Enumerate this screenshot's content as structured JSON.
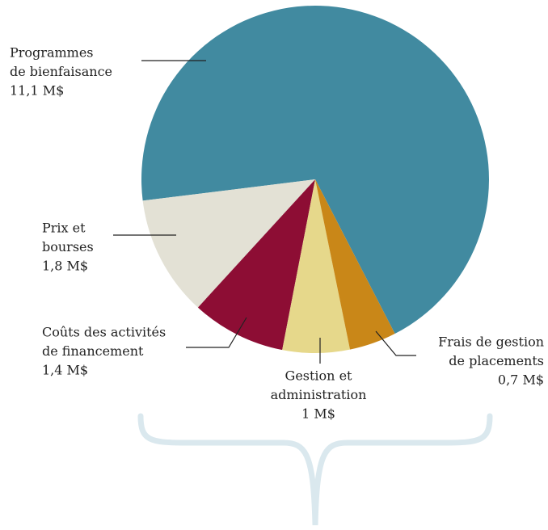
{
  "chart_data": {
    "type": "pie",
    "categories": [
      [
        "Programmes",
        "de bienfaisance"
      ],
      [
        "Prix et",
        "bourses"
      ],
      [
        "Coûts des activités",
        "de financement"
      ],
      [
        "Gestion et",
        "administration"
      ],
      [
        "Frais de gestion",
        "de placements"
      ]
    ],
    "values": [
      11.1,
      1.8,
      1.4,
      1,
      0.7
    ],
    "value_labels": [
      "11,1 M$",
      "1,8 M$",
      "1,4 M$",
      "1 M$",
      "0,7 M$"
    ],
    "colors": [
      "#418aa0",
      "#e3e1d5",
      "#8d0d34",
      "#e6d88b",
      "#c98718"
    ]
  }
}
